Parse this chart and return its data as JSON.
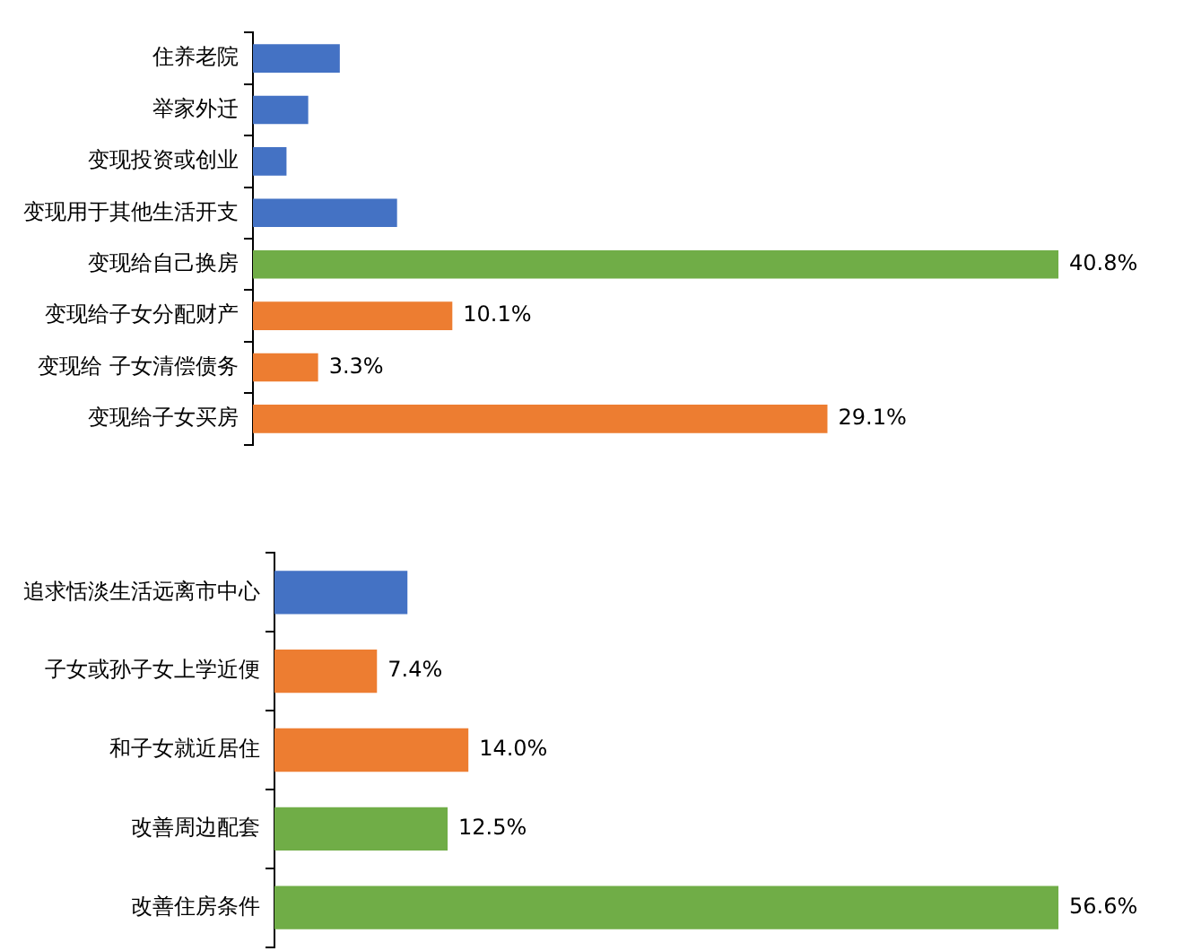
{
  "chart_data": [
    {
      "type": "bar",
      "orientation": "horizontal",
      "categories": [
        "住养老院",
        "举家外迁",
        "变现投资或创业",
        "变现用于其他生活开支",
        "变现给自己换房",
        "变现给子女分配财产",
        "变现给 子女清偿债务",
        "变现给子女买房"
      ],
      "values": [
        4.4,
        2.8,
        1.7,
        7.3,
        40.8,
        10.1,
        3.3,
        29.1
      ],
      "colors": [
        "#4472c4",
        "#4472c4",
        "#4472c4",
        "#4472c4",
        "#70ad47",
        "#ed7d31",
        "#ed7d31",
        "#ed7d31"
      ],
      "value_labels": [
        null,
        null,
        null,
        null,
        "40.8%",
        "10.1%",
        "3.3%",
        "29.1%"
      ],
      "legend": false,
      "grid": false
    },
    {
      "type": "bar",
      "orientation": "horizontal",
      "categories": [
        "追求恬淡生活远离市中心",
        "子女或孙子女上学近便",
        "和子女就近居住",
        "改善周边配套",
        "改善住房条件"
      ],
      "values": [
        9.6,
        7.4,
        14.0,
        12.5,
        56.6
      ],
      "colors": [
        "#4472c4",
        "#ed7d31",
        "#ed7d31",
        "#70ad47",
        "#70ad47"
      ],
      "value_labels": [
        null,
        "7.4%",
        "14.0%",
        "12.5%",
        "56.6%"
      ],
      "legend": false,
      "grid": false
    }
  ]
}
